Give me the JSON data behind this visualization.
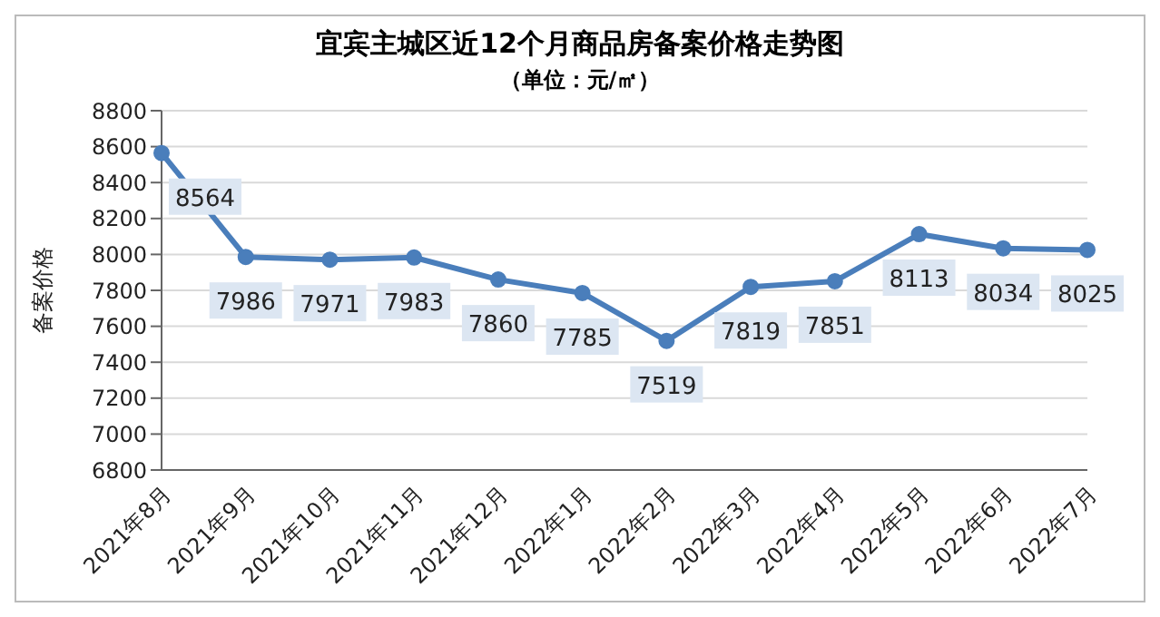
{
  "chart_data": {
    "type": "line",
    "title": "宜宾主城区近12个月商品房备案价格走势图",
    "subtitle": "（单位：元/㎡）",
    "ylabel": "备案价格",
    "categories": [
      "2021年8月",
      "2021年9月",
      "2021年10月",
      "2021年11月",
      "2021年12月",
      "2022年1月",
      "2022年2月",
      "2022年3月",
      "2022年4月",
      "2022年5月",
      "2022年6月",
      "2022年7月"
    ],
    "series": [
      {
        "color": "#4a7ebb",
        "values": [
          8564,
          7986,
          7971,
          7983,
          7860,
          7785,
          7519,
          7819,
          7851,
          8113,
          8034,
          8025
        ]
      }
    ],
    "ylim": [
      6800,
      8800
    ],
    "yticks": [
      6800,
      7000,
      7200,
      7400,
      7600,
      7800,
      8000,
      8200,
      8400,
      8600,
      8800
    ],
    "grid": "y",
    "marker": "circle",
    "line_style": "solid",
    "data_labels": true,
    "legend": false
  }
}
